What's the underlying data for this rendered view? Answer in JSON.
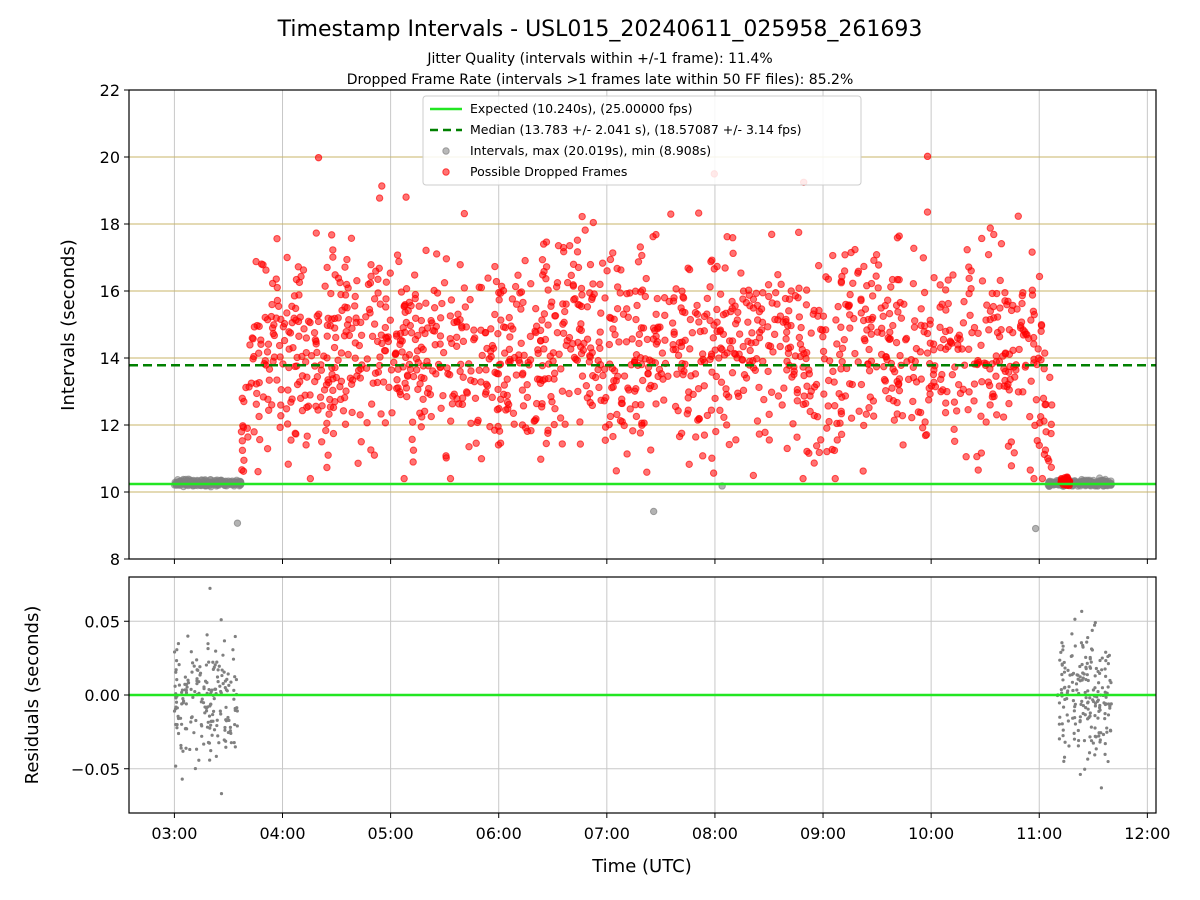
{
  "chart_data": {
    "type": "scatter",
    "title": "Timestamp Intervals - USL015_20240611_025958_261693",
    "subtitle_lines": [
      "Jitter Quality (intervals within +/-1 frame): 11.4%",
      "Dropped Frame Rate (intervals >1 frames late within 50 FF files): 85.2%"
    ],
    "xlabel": "Time (UTC)",
    "x_ticks": [
      "03:00",
      "04:00",
      "05:00",
      "06:00",
      "07:00",
      "08:00",
      "09:00",
      "10:00",
      "11:00",
      "12:00"
    ],
    "x_range_hours": [
      2.58,
      12.08
    ],
    "grid": true,
    "legend_position": "top-center",
    "top_panel": {
      "ylabel": "Intervals (seconds)",
      "ylim": [
        8,
        22
      ],
      "y_ticks": [
        "8",
        "10",
        "12",
        "14",
        "16",
        "18",
        "20",
        "22"
      ],
      "expected_interval": 10.24,
      "median_interval": 13.783,
      "series": [
        {
          "name": "Expected (10.240s), (25.00000 fps)",
          "kind": "line",
          "color": "#22e622"
        },
        {
          "name": "Median (13.783 +/- 2.041 s), (18.57087 +/- 3.14 fps)",
          "kind": "dashed-line",
          "color": "#008000"
        },
        {
          "name": "Intervals, max (20.019s), min (8.908s)",
          "kind": "scatter",
          "color": "#808080"
        },
        {
          "name": "Possible Dropped Frames",
          "kind": "scatter",
          "color": "#ff0000"
        }
      ],
      "normal_segments": [
        {
          "start": "03:00",
          "end": "03:37",
          "mean": 10.27,
          "spread": 0.12
        },
        {
          "start": "11:05",
          "end": "11:40",
          "mean": 10.27,
          "spread": 0.12
        }
      ],
      "dropped_segment": {
        "start": "03:37",
        "end": "11:07",
        "mean": 14.2,
        "spread": 1.6,
        "count": 1500
      },
      "notable_points": [
        {
          "time": "04:20",
          "value": 19.98,
          "color": "#ff0000"
        },
        {
          "time": "09:58",
          "value": 20.02,
          "color": "#ff0000"
        },
        {
          "time": "07:26",
          "value": 9.42,
          "color": "#808080"
        },
        {
          "time": "08:04",
          "value": 10.18,
          "color": "#808080"
        },
        {
          "time": "10:58",
          "value": 8.91,
          "color": "#808080"
        },
        {
          "time": "03:35",
          "value": 9.07,
          "color": "#808080"
        }
      ]
    },
    "bottom_panel": {
      "ylabel": "Residuals (seconds)",
      "ylim": [
        -0.08,
        0.08
      ],
      "y_ticks": [
        "0.05",
        "0.00",
        "−0.05"
      ],
      "zero_line_color": "#22e622",
      "residual_clusters": [
        {
          "start": "03:00",
          "end": "03:35",
          "count": 200,
          "spread": 0.03
        },
        {
          "start": "11:10",
          "end": "11:40",
          "count": 200,
          "spread": 0.03
        }
      ]
    },
    "colors": {
      "expected": "#22e622",
      "median": "#008000",
      "intervals": "#808080",
      "dropped": "#ff0000",
      "grid_y_top": "#c8b56a",
      "grid": "#c8c8c8"
    }
  }
}
